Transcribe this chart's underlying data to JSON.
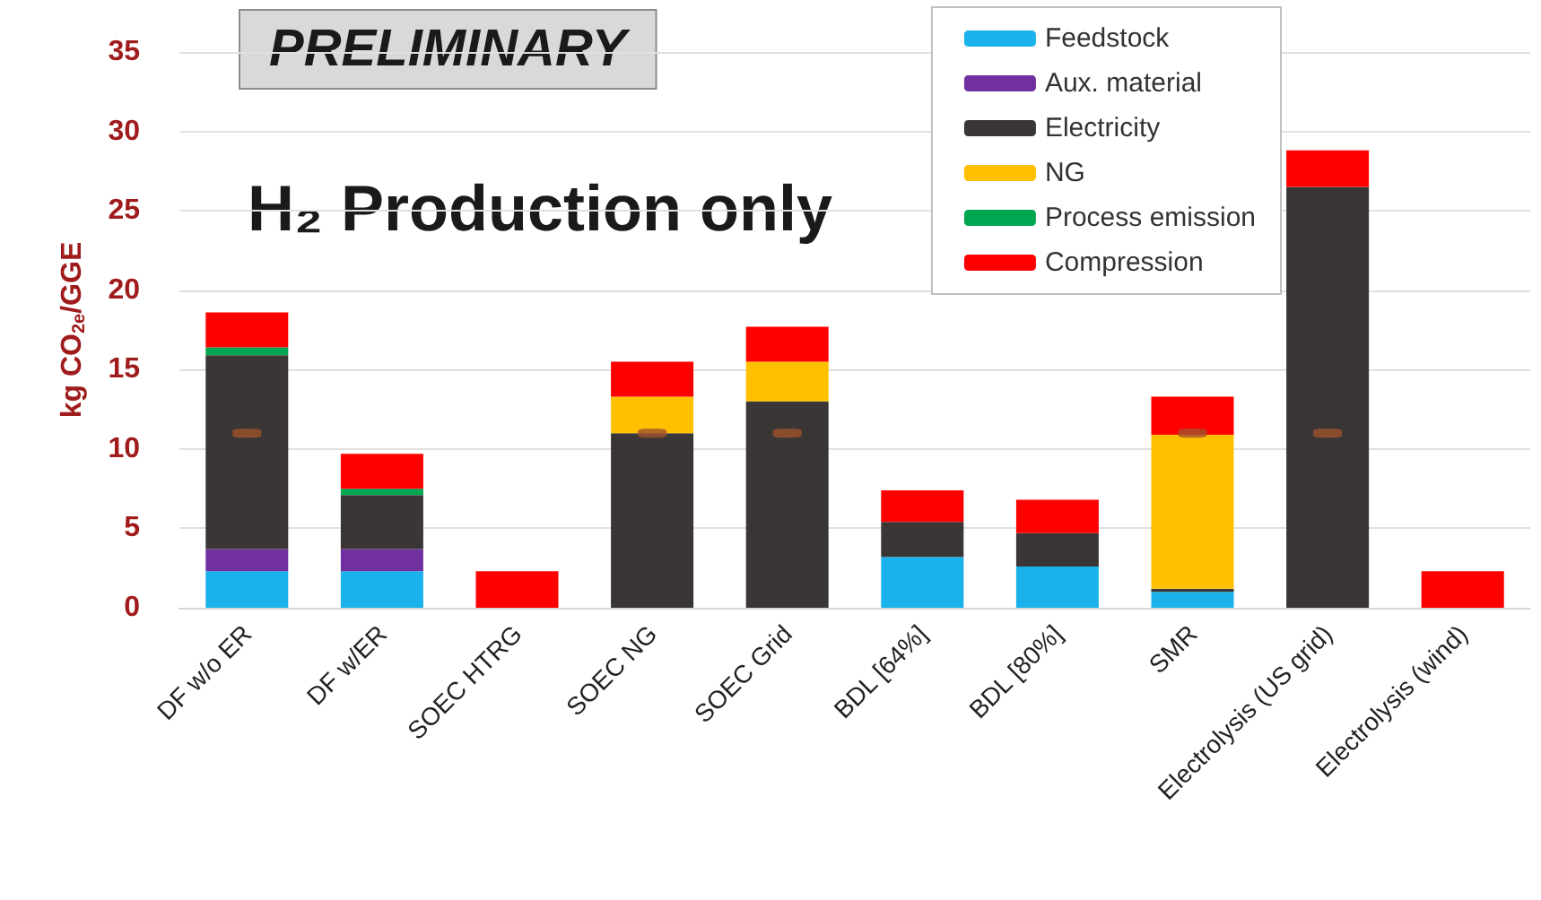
{
  "chart_data": {
    "type": "bar",
    "stacked": true,
    "ylabel": "kg CO$_{2e}$/GGE",
    "annotations": [
      "PRELIMINARY",
      "H₂ Production only"
    ],
    "categories": [
      "DF w/o ER",
      "DF w/ER",
      "SOEC HTRG",
      "SOEC NG",
      "SOEC Grid",
      "BDL [64%]",
      "BDL [80%]",
      "SMR",
      "Electrolysis (US grid)",
      "Electrolysis (wind)"
    ],
    "series": [
      {
        "name": "Feedstock",
        "color": "#1ab2ea",
        "values": [
          2.3,
          2.3,
          null,
          null,
          null,
          3.2,
          2.6,
          1.0,
          null,
          null
        ]
      },
      {
        "name": "Aux. material",
        "color": "#7030a0",
        "values": [
          1.4,
          1.4,
          null,
          null,
          null,
          null,
          null,
          null,
          null,
          null
        ]
      },
      {
        "name": "Electricity",
        "color": "#3a3636",
        "values": [
          12.2,
          3.4,
          null,
          11.0,
          13.0,
          2.2,
          2.1,
          0.2,
          26.5,
          null
        ]
      },
      {
        "name": "NG",
        "color": "#ffc000",
        "values": [
          null,
          null,
          null,
          2.3,
          2.5,
          null,
          null,
          9.7,
          null,
          null
        ]
      },
      {
        "name": "Process emission",
        "color": "#00a651",
        "values": [
          0.5,
          0.4,
          null,
          null,
          null,
          null,
          null,
          null,
          null,
          null
        ]
      },
      {
        "name": "Compression",
        "color": "#ff0000",
        "values": [
          2.2,
          2.2,
          2.3,
          2.2,
          2.2,
          2.0,
          2.1,
          2.4,
          2.3,
          2.3
        ]
      },
      {
        "type": "scatter",
        "color": "#a0522d",
        "x": [
          "DF w/o ER",
          "SOEC NG",
          "SOEC Grid",
          "SMR",
          "Electrolysis (US grid)"
        ],
        "values": [
          11,
          11,
          11,
          11,
          11
        ]
      }
    ],
    "ylim": [
      0,
      35
    ],
    "yticks": [
      0,
      5,
      10,
      15,
      20,
      25,
      30,
      35
    ],
    "grid": "y",
    "legend": "top right"
  }
}
